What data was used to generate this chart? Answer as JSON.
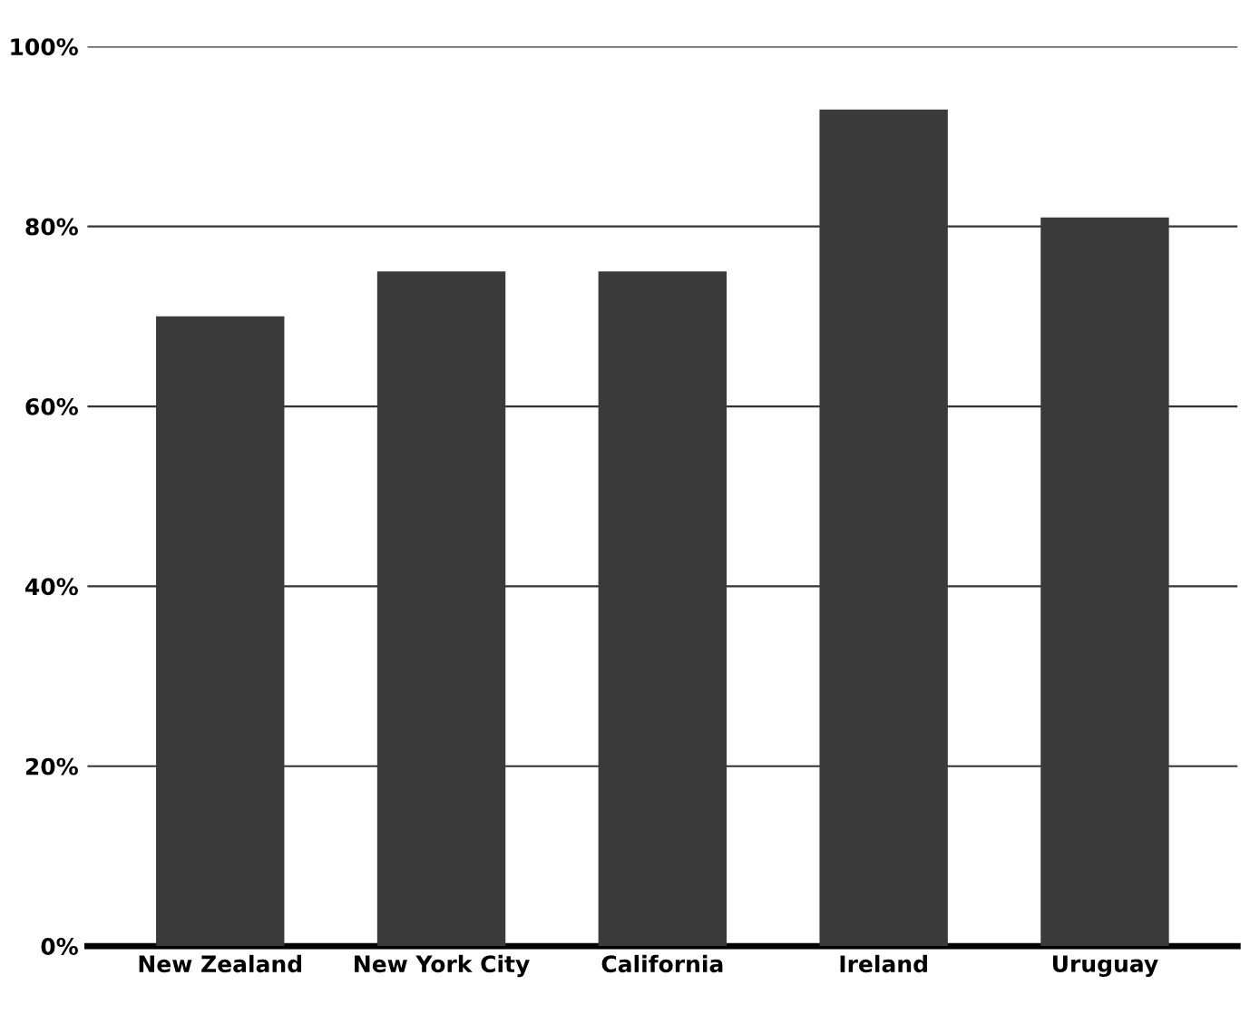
{
  "chart_data": {
    "type": "bar",
    "categories": [
      "New Zealand",
      "New York City",
      "California",
      "Ireland",
      "Uruguay"
    ],
    "values": [
      70,
      75,
      75,
      93,
      81
    ],
    "color": "#3a3a3a",
    "ylim": [
      0,
      100
    ],
    "yticks": [
      {
        "value": 0,
        "label": "0%"
      },
      {
        "value": 20,
        "label": "20%"
      },
      {
        "value": 40,
        "label": "40%"
      },
      {
        "value": 60,
        "label": "60%"
      },
      {
        "value": 80,
        "label": "80%"
      },
      {
        "value": 100,
        "label": "100%"
      }
    ],
    "grid": "y"
  }
}
